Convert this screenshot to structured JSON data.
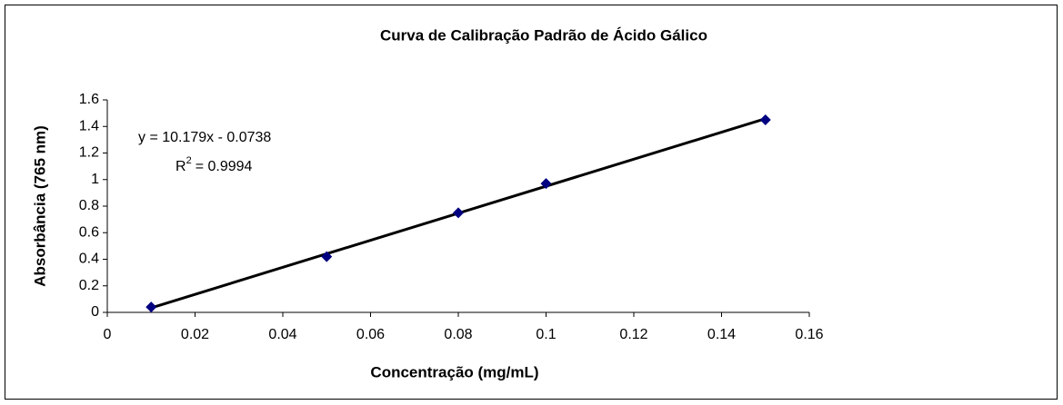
{
  "chart_data": {
    "type": "scatter",
    "title": "Curva de Calibração Padrão de Ácido Gálico",
    "x_label": "Concentração (mg/mL)",
    "y_label": "Absorbância (765 nm)",
    "equation": "y = 10.179x - 0.0738",
    "r_squared": {
      "symbol": "R",
      "exponent": "2",
      "text": "= 0.9994"
    },
    "x": [
      0.01,
      0.05,
      0.08,
      0.1,
      0.15
    ],
    "series": [
      {
        "name": "Absorbância",
        "color": "#000080",
        "values": [
          0.04,
          0.42,
          0.75,
          0.97,
          1.45
        ]
      }
    ],
    "trendline_color": "#000000",
    "xlim": [
      0,
      0.16
    ],
    "xticks": [
      0,
      0.02,
      0.04,
      0.06,
      0.08,
      0.1,
      0.12,
      0.14,
      0.16
    ],
    "ylim": [
      0,
      1.6
    ],
    "yticks": [
      0,
      0.2,
      0.4,
      0.6,
      0.8,
      1,
      1.2,
      1.4,
      1.6
    ],
    "grid": false
  }
}
